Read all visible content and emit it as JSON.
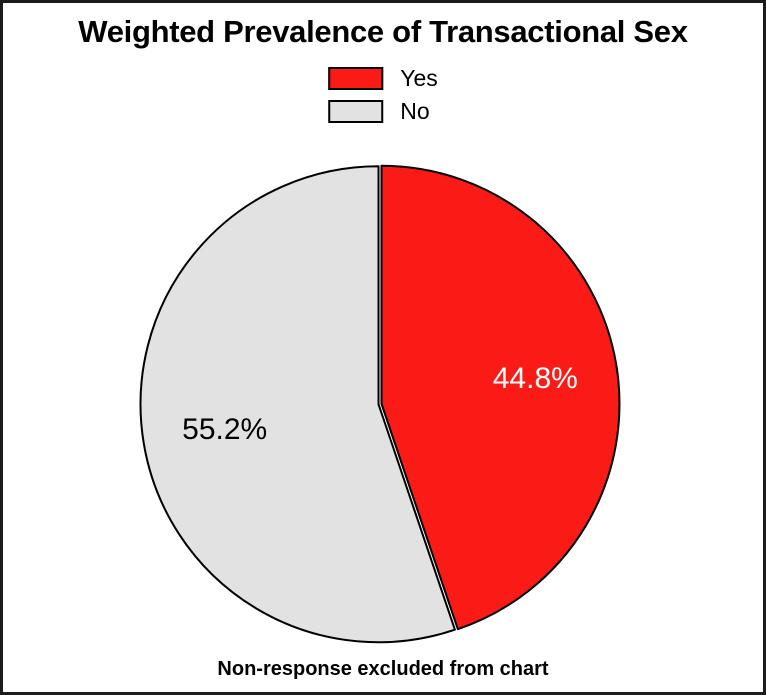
{
  "page": {
    "background": "#FFFFFF",
    "frame_border_color": "#1C1C1C"
  },
  "chart_data": {
    "type": "pie",
    "title": "Weighted Prevalence of Transactional Sex",
    "footnote": "Non-response excluded from chart",
    "direction": "clockwise",
    "start_angle_deg": 0,
    "legend_position": "top-center",
    "outline_color": "#000000",
    "slices": [
      {
        "label": "Yes",
        "value": 44.8,
        "display": "44.8%",
        "color": "#FB1B16",
        "label_color": "#FFFFFF"
      },
      {
        "label": "No",
        "value": 55.2,
        "display": "55.2%",
        "color": "#E2E2E2",
        "label_color": "#000000"
      }
    ]
  }
}
